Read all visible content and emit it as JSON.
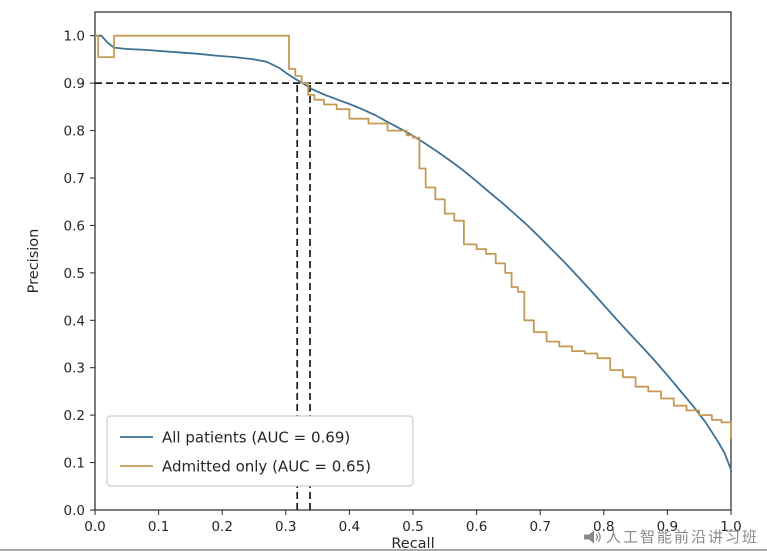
{
  "chart_data": {
    "type": "line",
    "title": "",
    "xlabel": "Recall",
    "ylabel": "Precision",
    "xlim": [
      0.0,
      1.0
    ],
    "ylim": [
      0.0,
      1.05
    ],
    "xticks": [
      0.0,
      0.1,
      0.2,
      0.3,
      0.4,
      0.5,
      0.6,
      0.7,
      0.8,
      0.9,
      1.0
    ],
    "yticks": [
      0.0,
      0.1,
      0.2,
      0.3,
      0.4,
      0.5,
      0.6,
      0.7,
      0.8,
      0.9,
      1.0
    ],
    "grid": false,
    "legend_position": "lower left",
    "series": [
      {
        "name": "All patients (AUC = 0.69)",
        "color": "#3d7294",
        "step": false,
        "x": [
          0,
          0.01,
          0.02,
          0.03,
          0.05,
          0.08,
          0.1,
          0.13,
          0.16,
          0.19,
          0.22,
          0.25,
          0.27,
          0.29,
          0.3,
          0.31,
          0.32,
          0.33,
          0.34,
          0.36,
          0.38,
          0.4,
          0.42,
          0.44,
          0.46,
          0.48,
          0.5,
          0.52,
          0.54,
          0.56,
          0.58,
          0.6,
          0.62,
          0.64,
          0.66,
          0.68,
          0.7,
          0.72,
          0.74,
          0.76,
          0.78,
          0.8,
          0.82,
          0.84,
          0.86,
          0.88,
          0.9,
          0.92,
          0.94,
          0.96,
          0.98,
          0.99,
          1.0
        ],
        "y": [
          1.0,
          1.0,
          0.985,
          0.975,
          0.972,
          0.97,
          0.968,
          0.965,
          0.962,
          0.958,
          0.955,
          0.95,
          0.945,
          0.932,
          0.922,
          0.913,
          0.905,
          0.897,
          0.888,
          0.876,
          0.866,
          0.856,
          0.845,
          0.833,
          0.818,
          0.804,
          0.789,
          0.772,
          0.754,
          0.735,
          0.715,
          0.693,
          0.67,
          0.648,
          0.624,
          0.6,
          0.574,
          0.547,
          0.52,
          0.491,
          0.462,
          0.432,
          0.402,
          0.373,
          0.344,
          0.315,
          0.284,
          0.252,
          0.22,
          0.185,
          0.143,
          0.12,
          0.085
        ]
      },
      {
        "name": "Admitted only (AUC = 0.65)",
        "color": "#c49a55",
        "step": true,
        "x": [
          0,
          0.005,
          0.03,
          0.295,
          0.305,
          0.315,
          0.325,
          0.335,
          0.345,
          0.36,
          0.38,
          0.4,
          0.43,
          0.46,
          0.49,
          0.5,
          0.51,
          0.52,
          0.535,
          0.55,
          0.565,
          0.58,
          0.6,
          0.615,
          0.63,
          0.645,
          0.655,
          0.665,
          0.675,
          0.69,
          0.71,
          0.73,
          0.75,
          0.77,
          0.79,
          0.81,
          0.83,
          0.85,
          0.87,
          0.89,
          0.91,
          0.93,
          0.95,
          0.97,
          0.985,
          1.0
        ],
        "y": [
          1.0,
          0.955,
          1.0,
          1.0,
          0.93,
          0.915,
          0.9,
          0.875,
          0.865,
          0.855,
          0.845,
          0.825,
          0.815,
          0.8,
          0.79,
          0.785,
          0.72,
          0.68,
          0.655,
          0.625,
          0.61,
          0.56,
          0.55,
          0.54,
          0.52,
          0.5,
          0.47,
          0.46,
          0.4,
          0.375,
          0.355,
          0.345,
          0.335,
          0.33,
          0.32,
          0.295,
          0.28,
          0.26,
          0.25,
          0.235,
          0.22,
          0.21,
          0.2,
          0.19,
          0.185,
          0.15
        ]
      }
    ],
    "reference_lines": {
      "horizontal": [
        {
          "y": 0.9
        }
      ],
      "vertical": [
        {
          "x": 0.318,
          "ymax": 0.9
        },
        {
          "x": 0.338,
          "ymax": 0.9
        }
      ]
    }
  },
  "watermark": {
    "text": "人工智能前沿讲习班",
    "icon": "megaphone-icon",
    "color": "#8a8a8a"
  },
  "colors": {
    "all_patients": "#3d7294",
    "admitted_only": "#c49a55",
    "threshold": "#1a1a1a",
    "spine": "#262626"
  }
}
